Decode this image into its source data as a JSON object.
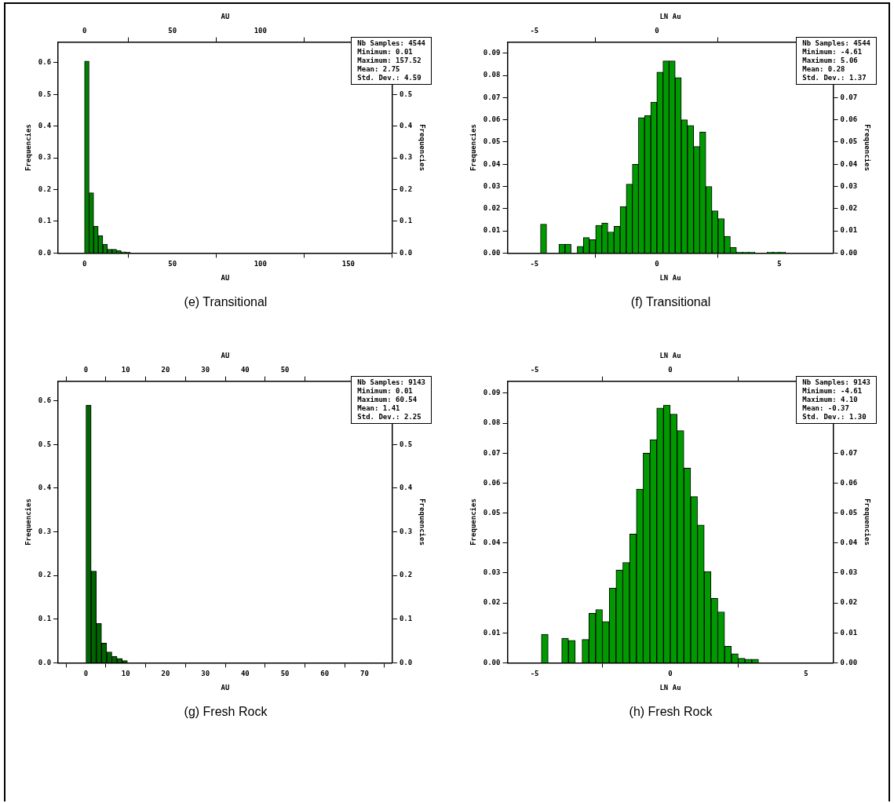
{
  "chart_data": [
    {
      "type": "histogram",
      "title": "(e)   Transitional",
      "xlabel": "AU",
      "x2label": "AU",
      "ylabel": "Frequencies",
      "y2label": "Frequencies",
      "color": "#008000",
      "bins": [
        0,
        2.6,
        5.2,
        7.8,
        10.4,
        13,
        15.6,
        18.2,
        20.8,
        23.4,
        26
      ],
      "values": [
        0.605,
        0.19,
        0.085,
        0.055,
        0.028,
        0.012,
        0.012,
        0.008,
        0.004,
        0.003
      ],
      "xlim": [
        -15,
        175
      ],
      "xticks": [
        0,
        50,
        100,
        150
      ],
      "x2lim": [
        -15,
        175
      ],
      "x2ticks": [
        0,
        50,
        100
      ],
      "ylim": [
        0,
        0.665
      ],
      "yticks": [
        {
          "value": 0,
          "label": "0.0"
        },
        {
          "value": 0.1,
          "label": "0.1"
        },
        {
          "value": 0.2,
          "label": "0.2"
        },
        {
          "value": 0.3,
          "label": "0.3"
        },
        {
          "value": 0.4,
          "label": "0.4"
        },
        {
          "value": 0.5,
          "label": "0.5"
        },
        {
          "value": 0.6,
          "label": "0.6"
        }
      ],
      "y2lim": [
        0,
        0.665
      ],
      "y2ticks": [
        {
          "value": 0,
          "label": "0.0"
        },
        {
          "value": 0.1,
          "label": "0.1"
        },
        {
          "value": 0.2,
          "label": "0.2"
        },
        {
          "value": 0.3,
          "label": "0.3"
        },
        {
          "value": 0.4,
          "label": "0.4"
        },
        {
          "value": 0.5,
          "label": "0.5"
        }
      ],
      "annotations": [
        "Nb Samples: 4544",
        "Minimum: 0.01",
        "Maximum: 157.52",
        "Mean: 2.75",
        "Std. Dev.: 4.59"
      ]
    },
    {
      "type": "histogram",
      "title": "(f)   Transitional",
      "xlabel": "LN Au",
      "x2label": "LN Au",
      "ylabel": "Frequencies",
      "y2label": "Frequencies",
      "color": "#009900",
      "bins": [
        -4.75,
        -4.5,
        -4.25,
        -4,
        -3.75,
        -3.5,
        -3.25,
        -3,
        -2.75,
        -2.5,
        -2.25,
        -2,
        -1.75,
        -1.5,
        -1.25,
        -1,
        -0.75,
        -0.5,
        -0.25,
        0,
        0.25,
        0.5,
        0.75,
        1,
        1.25,
        1.5,
        1.75,
        2,
        2.25,
        2.5,
        2.75,
        3,
        3.25,
        3.5,
        3.75,
        4,
        4.25,
        4.5,
        4.75,
        5,
        5.25
      ],
      "values": [
        0.013,
        0,
        0,
        0.004,
        0.004,
        0,
        0.003,
        0.007,
        0.006,
        0.0125,
        0.0135,
        0.0095,
        0.012,
        0.021,
        0.031,
        0.04,
        0.061,
        0.062,
        0.068,
        0.0815,
        0.0865,
        0.0865,
        0.079,
        0.06,
        0.0575,
        0.048,
        0.0545,
        0.03,
        0.019,
        0.0155,
        0.0075,
        0.0025,
        0.0005,
        0.0005,
        0.0005,
        0,
        0,
        0.0005,
        0.0005,
        0.0005
      ],
      "xlim": [
        -6.1,
        7.2
      ],
      "xticks": [
        -5,
        0,
        5
      ],
      "x2lim": [
        -6.1,
        7.2
      ],
      "x2ticks": [
        -5,
        0
      ],
      "ylim": [
        0,
        0.095
      ],
      "yticks": [
        {
          "value": 0,
          "label": "0.00"
        },
        {
          "value": 0.01,
          "label": "0.01"
        },
        {
          "value": 0.02,
          "label": "0.02"
        },
        {
          "value": 0.03,
          "label": "0.03"
        },
        {
          "value": 0.04,
          "label": "0.04"
        },
        {
          "value": 0.05,
          "label": "0.05"
        },
        {
          "value": 0.06,
          "label": "0.06"
        },
        {
          "value": 0.07,
          "label": "0.07"
        },
        {
          "value": 0.08,
          "label": "0.08"
        },
        {
          "value": 0.09,
          "label": "0.09"
        }
      ],
      "y2lim": [
        0,
        0.095
      ],
      "y2ticks": [
        {
          "value": 0,
          "label": "0.00"
        },
        {
          "value": 0.01,
          "label": "0.01"
        },
        {
          "value": 0.02,
          "label": "0.02"
        },
        {
          "value": 0.03,
          "label": "0.03"
        },
        {
          "value": 0.04,
          "label": "0.04"
        },
        {
          "value": 0.05,
          "label": "0.05"
        },
        {
          "value": 0.06,
          "label": "0.06"
        },
        {
          "value": 0.07,
          "label": "0.07"
        }
      ],
      "annotations": [
        "Nb Samples: 4544",
        "Minimum: -4.61",
        "Maximum: 5.06",
        "Mean: 0.28",
        "Std. Dev.: 1.37"
      ]
    },
    {
      "type": "histogram",
      "title": "(g)   Fresh Rock",
      "xlabel": "AU",
      "x2label": "AU",
      "ylabel": "Frequencies",
      "y2label": "Frequencies",
      "color": "#006400",
      "bins": [
        0,
        1.3,
        2.6,
        3.9,
        5.2,
        6.5,
        7.8,
        9.1,
        10.4
      ],
      "values": [
        0.59,
        0.21,
        0.09,
        0.045,
        0.025,
        0.015,
        0.01,
        0.005
      ],
      "xlim": [
        -7,
        77
      ],
      "xticks": [
        0,
        10,
        20,
        30,
        40,
        50,
        60,
        70
      ],
      "x2lim": [
        -7,
        77
      ],
      "x2ticks": [
        0,
        10,
        20,
        30,
        40,
        50
      ],
      "ylim": [
        0,
        0.645
      ],
      "yticks": [
        {
          "value": 0,
          "label": "0.0"
        },
        {
          "value": 0.1,
          "label": "0.1"
        },
        {
          "value": 0.2,
          "label": "0.2"
        },
        {
          "value": 0.3,
          "label": "0.3"
        },
        {
          "value": 0.4,
          "label": "0.4"
        },
        {
          "value": 0.5,
          "label": "0.5"
        },
        {
          "value": 0.6,
          "label": "0.6"
        }
      ],
      "y2lim": [
        0,
        0.645
      ],
      "y2ticks": [
        {
          "value": 0,
          "label": "0.0"
        },
        {
          "value": 0.1,
          "label": "0.1"
        },
        {
          "value": 0.2,
          "label": "0.2"
        },
        {
          "value": 0.3,
          "label": "0.3"
        },
        {
          "value": 0.4,
          "label": "0.4"
        },
        {
          "value": 0.5,
          "label": "0.5"
        }
      ],
      "annotations": [
        "Nb Samples: 9143",
        "Minimum: 0.01",
        "Maximum: 60.54",
        "Mean: 1.41",
        "Std. Dev.: 2.25"
      ]
    },
    {
      "type": "histogram",
      "title": "(h)   Fresh Rock",
      "xlabel": "LN Au",
      "x2label": "LN Au",
      "ylabel": "Frequencies",
      "y2label": "Frequencies",
      "color": "#009900",
      "bins": [
        -4.75,
        -4.5,
        -4.25,
        -4,
        -3.75,
        -3.5,
        -3.25,
        -3,
        -2.75,
        -2.5,
        -2.25,
        -2,
        -1.75,
        -1.5,
        -1.25,
        -1,
        -0.75,
        -0.5,
        -0.25,
        0,
        0.25,
        0.5,
        0.75,
        1,
        1.25,
        1.5,
        1.75,
        2,
        2.25,
        2.5,
        2.75,
        3,
        3.25
      ],
      "values": [
        0.0095,
        0,
        0,
        0.0082,
        0.0075,
        0,
        0.0078,
        0.0165,
        0.0178,
        0.0138,
        0.025,
        0.031,
        0.0335,
        0.043,
        0.058,
        0.07,
        0.0745,
        0.085,
        0.086,
        0.083,
        0.0775,
        0.065,
        0.0555,
        0.046,
        0.0305,
        0.0215,
        0.017,
        0.0055,
        0.003,
        0.0015,
        0.0012,
        0.0012
      ],
      "xlim": [
        -6,
        6
      ],
      "xticks": [
        -5,
        0,
        5
      ],
      "x2lim": [
        -6,
        6
      ],
      "x2ticks": [
        -5,
        0
      ],
      "ylim": [
        0,
        0.094
      ],
      "yticks": [
        {
          "value": 0,
          "label": "0.00"
        },
        {
          "value": 0.01,
          "label": "0.01"
        },
        {
          "value": 0.02,
          "label": "0.02"
        },
        {
          "value": 0.03,
          "label": "0.03"
        },
        {
          "value": 0.04,
          "label": "0.04"
        },
        {
          "value": 0.05,
          "label": "0.05"
        },
        {
          "value": 0.06,
          "label": "0.06"
        },
        {
          "value": 0.07,
          "label": "0.07"
        },
        {
          "value": 0.08,
          "label": "0.08"
        },
        {
          "value": 0.09,
          "label": "0.09"
        }
      ],
      "y2lim": [
        0,
        0.094
      ],
      "y2ticks": [
        {
          "value": 0,
          "label": "0.00"
        },
        {
          "value": 0.01,
          "label": "0.01"
        },
        {
          "value": 0.02,
          "label": "0.02"
        },
        {
          "value": 0.03,
          "label": "0.03"
        },
        {
          "value": 0.04,
          "label": "0.04"
        },
        {
          "value": 0.05,
          "label": "0.05"
        },
        {
          "value": 0.06,
          "label": "0.06"
        },
        {
          "value": 0.07,
          "label": "0.07"
        }
      ],
      "annotations": [
        "Nb Samples: 9143",
        "Minimum: -4.61",
        "Maximum: 4.10",
        "Mean: -0.37",
        "Std. Dev.: 1.30"
      ]
    }
  ]
}
